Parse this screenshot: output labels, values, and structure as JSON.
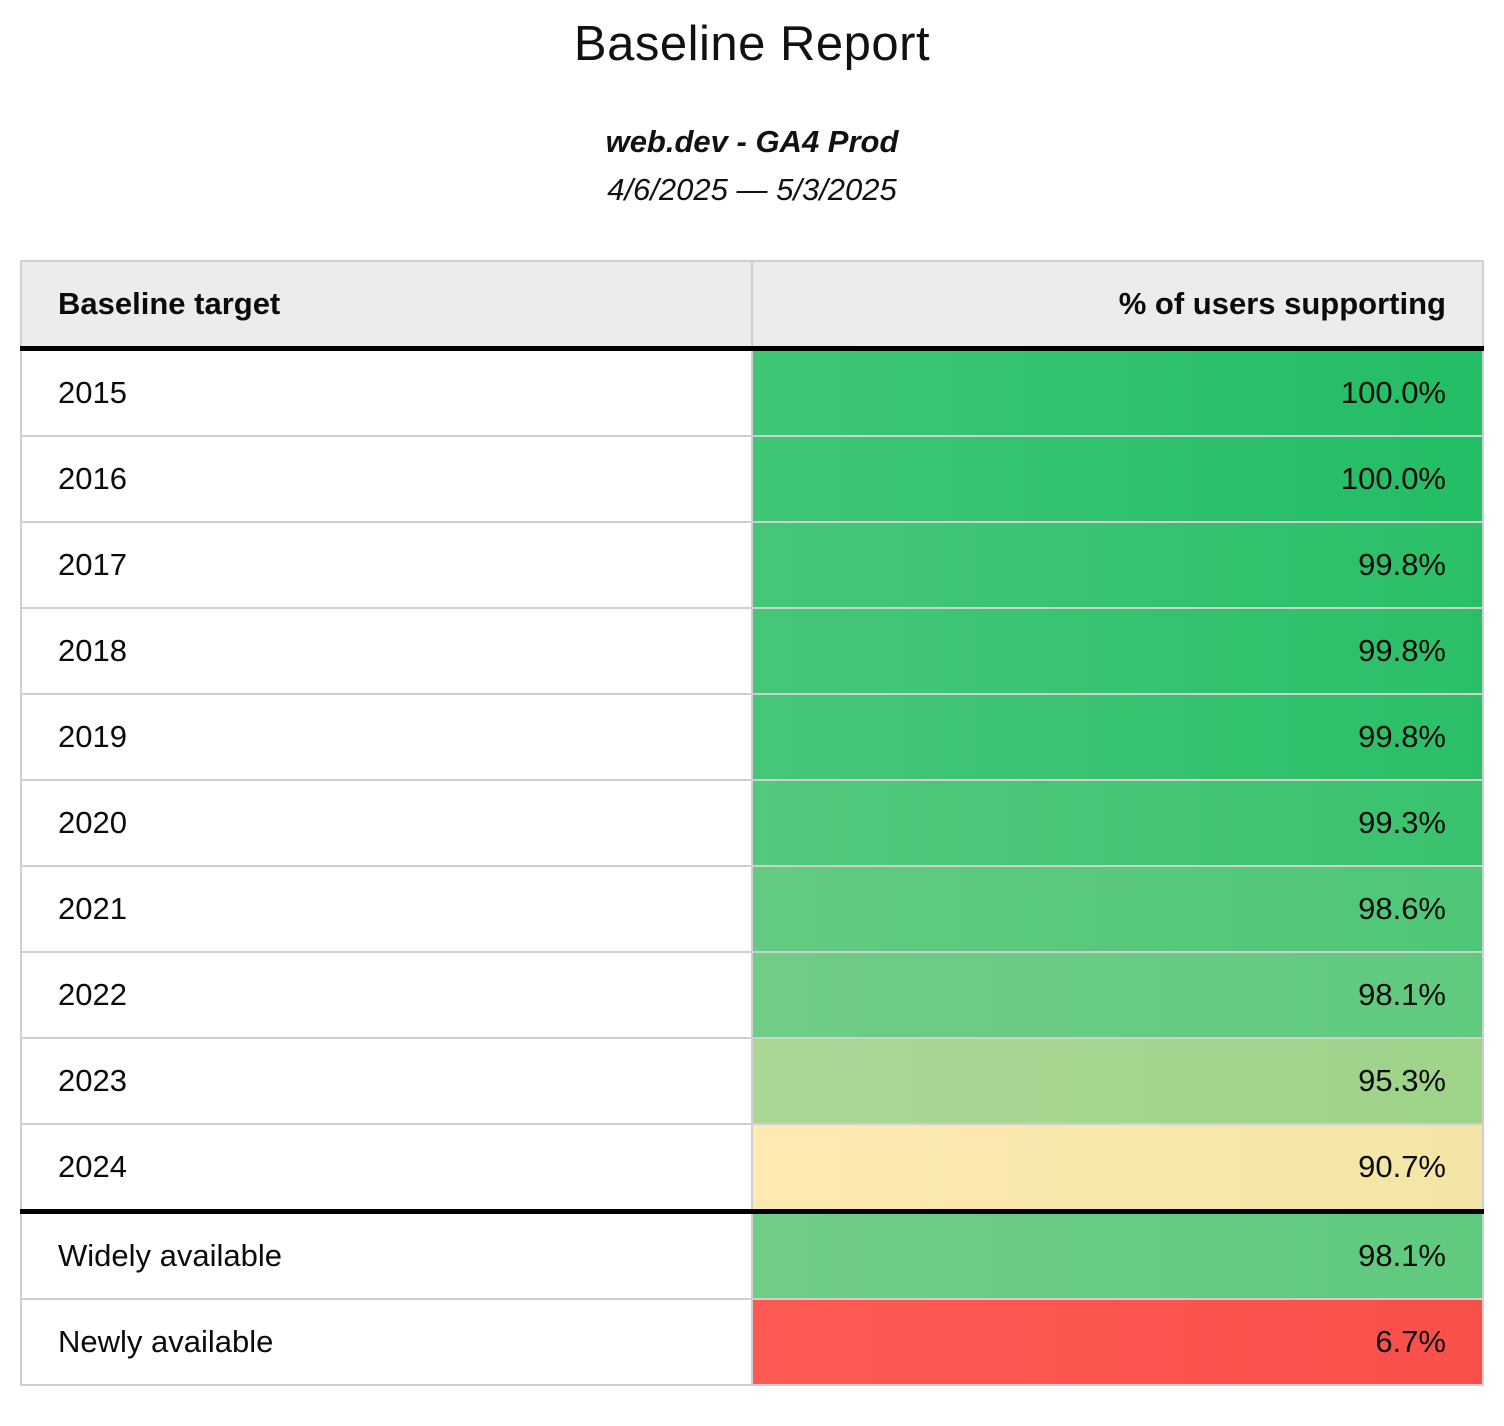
{
  "report": {
    "title": "Baseline Report",
    "subtitle": "web.dev - GA4 Prod",
    "date_range": "4/6/2025 — 5/3/2025"
  },
  "table": {
    "columns": [
      "Baseline target",
      "% of users supporting"
    ],
    "rows": [
      {
        "target": "2015",
        "value": "100.0%",
        "value_num": 100.0,
        "color_left": "#3fc675",
        "color_right": "#22bd64",
        "thick_top": false
      },
      {
        "target": "2016",
        "value": "100.0%",
        "value_num": 100.0,
        "color_left": "#3fc675",
        "color_right": "#22bd64",
        "thick_top": false
      },
      {
        "target": "2017",
        "value": "99.8%",
        "value_num": 99.8,
        "color_left": "#46c778",
        "color_right": "#2abf67",
        "thick_top": false
      },
      {
        "target": "2018",
        "value": "99.8%",
        "value_num": 99.8,
        "color_left": "#46c778",
        "color_right": "#2abf67",
        "thick_top": false
      },
      {
        "target": "2019",
        "value": "99.8%",
        "value_num": 99.8,
        "color_left": "#46c778",
        "color_right": "#2abf67",
        "thick_top": false
      },
      {
        "target": "2020",
        "value": "99.3%",
        "value_num": 99.3,
        "color_left": "#52c97c",
        "color_right": "#39c26e",
        "thick_top": false
      },
      {
        "target": "2021",
        "value": "98.6%",
        "value_num": 98.6,
        "color_left": "#63cb81",
        "color_right": "#4dc776",
        "thick_top": false
      },
      {
        "target": "2022",
        "value": "98.1%",
        "value_num": 98.1,
        "color_left": "#70cd86",
        "color_right": "#5fca7d",
        "thick_top": false
      },
      {
        "target": "2023",
        "value": "95.3%",
        "value_num": 95.3,
        "color_left": "#abd795",
        "color_right": "#9ed48a",
        "thick_top": false
      },
      {
        "target": "2024",
        "value": "90.7%",
        "value_num": 90.7,
        "color_left": "#fdeab2",
        "color_right": "#f3e5a5",
        "thick_top": false
      },
      {
        "target": "Widely available",
        "value": "98.1%",
        "value_num": 98.1,
        "color_left": "#70cd86",
        "color_right": "#5fca7d",
        "thick_top": true
      },
      {
        "target": "Newly available",
        "value": "6.7%",
        "value_num": 6.7,
        "color_left": "#fd5a55",
        "color_right": "#f94f4b",
        "thick_top": false
      }
    ]
  },
  "colors": {
    "header_bg": "#ececec",
    "thin_border": "#cfcfcf",
    "thick_border": "#000000",
    "scale_high_green": "#22bd64",
    "scale_mid_yellow": "#f8e7ab",
    "scale_low_red": "#fd5a55"
  },
  "chart_data": {
    "type": "table",
    "title": "Baseline Report",
    "subtitle": "web.dev - GA4 Prod",
    "date_range": "4/6/2025 — 5/3/2025",
    "columns": [
      "Baseline target",
      "% of users supporting"
    ],
    "rows": [
      [
        "2015",
        100.0
      ],
      [
        "2016",
        100.0
      ],
      [
        "2017",
        99.8
      ],
      [
        "2018",
        99.8
      ],
      [
        "2019",
        99.8
      ],
      [
        "2020",
        99.3
      ],
      [
        "2021",
        98.6
      ],
      [
        "2022",
        98.1
      ],
      [
        "2023",
        95.3
      ],
      [
        "2024",
        90.7
      ],
      [
        "Widely available",
        98.1
      ],
      [
        "Newly available",
        6.7
      ]
    ],
    "layout_hints": {
      "value_cells_colored": "green-to-yellow-to-red heatmap by percentage, subtle left-to-right darkening gradient",
      "thick_black_rule_below": [
        "header row",
        "2024 row"
      ]
    }
  }
}
